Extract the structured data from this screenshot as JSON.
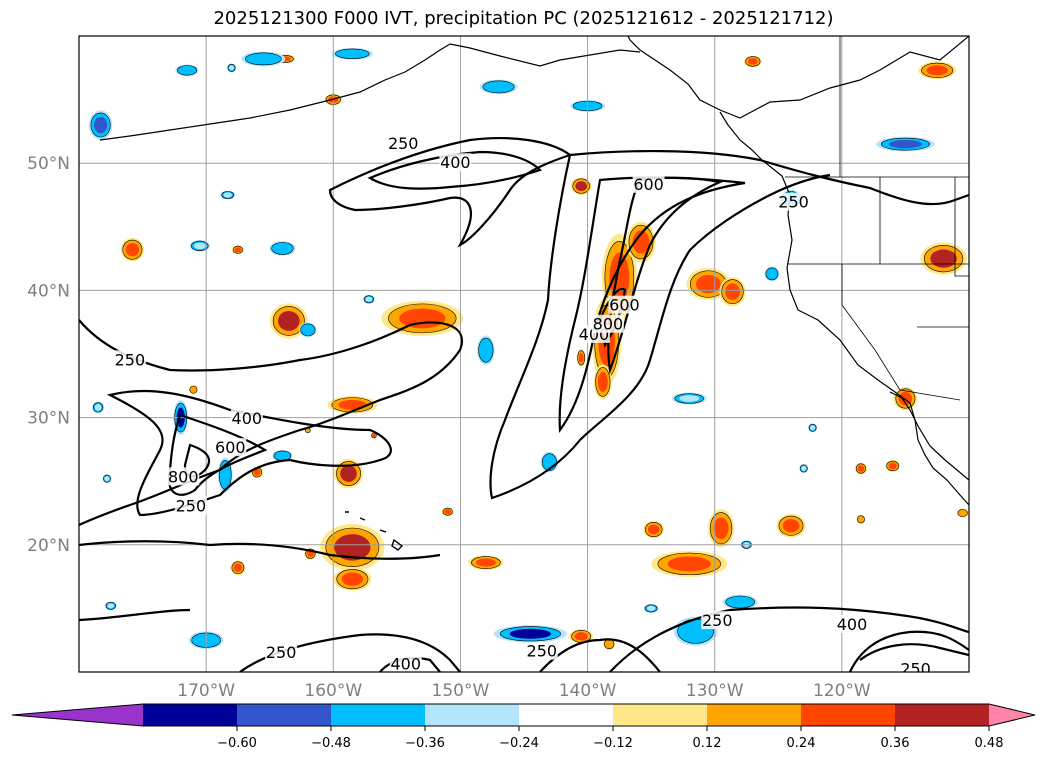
{
  "chart_data": {
    "type": "map",
    "title": "2025121300 F000 IVT, precipitation PC (2025121612 - 2025121712)",
    "lon_range": [
      -180,
      -110
    ],
    "lat_range": [
      10,
      60
    ],
    "lat_ticks": [
      {
        "value": 20,
        "label": "20°N"
      },
      {
        "value": 30,
        "label": "30°N"
      },
      {
        "value": 40,
        "label": "40°N"
      },
      {
        "value": 50,
        "label": "50°N"
      }
    ],
    "lon_ticks": [
      {
        "value": -170,
        "label": "170°W"
      },
      {
        "value": -160,
        "label": "160°W"
      },
      {
        "value": -150,
        "label": "150°W"
      },
      {
        "value": -140,
        "label": "140°W"
      },
      {
        "value": -130,
        "label": "130°W"
      },
      {
        "value": -120,
        "label": "120°W"
      }
    ],
    "grid": true,
    "ivt_contour_levels": [
      250,
      400,
      600,
      800
    ],
    "contour_labels": [
      {
        "text": "250",
        "lon": -171.2,
        "lat": 23.0
      },
      {
        "text": "250",
        "lon": -176.0,
        "lat": 34.5
      },
      {
        "text": "800",
        "lon": -171.8,
        "lat": 25.3
      },
      {
        "text": "600",
        "lon": -168.1,
        "lat": 27.6
      },
      {
        "text": "400",
        "lon": -166.8,
        "lat": 29.9
      },
      {
        "text": "250",
        "lon": -154.5,
        "lat": 51.5
      },
      {
        "text": "400",
        "lon": -150.4,
        "lat": 50.0
      },
      {
        "text": "600",
        "lon": -135.2,
        "lat": 48.3
      },
      {
        "text": "250",
        "lon": -123.8,
        "lat": 46.9
      },
      {
        "text": "400",
        "lon": -139.5,
        "lat": 36.5
      },
      {
        "text": "800",
        "lon": -138.4,
        "lat": 37.3
      },
      {
        "text": "600",
        "lon": -137.1,
        "lat": 38.8
      },
      {
        "text": "250",
        "lon": -164.1,
        "lat": 11.5
      },
      {
        "text": "400",
        "lon": -154.3,
        "lat": 10.6
      },
      {
        "text": "250",
        "lon": -143.6,
        "lat": 11.6
      },
      {
        "text": "250",
        "lon": -129.8,
        "lat": 14.0
      },
      {
        "text": "400",
        "lon": -119.2,
        "lat": 13.7
      },
      {
        "text": "250",
        "lon": -114.2,
        "lat": 10.2
      }
    ],
    "precip_pc_colorbar": {
      "boundaries": [
        -0.72,
        -0.6,
        -0.48,
        -0.36,
        -0.24,
        -0.12,
        0.12,
        0.24,
        0.36,
        0.48,
        0.6,
        0.72
      ],
      "colors": [
        "#9933cc",
        "#000099",
        "#3355cc",
        "#00bfff",
        "#b3e5fc",
        "#ffffff",
        "#ffe88a",
        "#ffa500",
        "#ff4500",
        "#b22222",
        "#ff85a8"
      ],
      "tick_values": [
        -0.6,
        -0.48,
        -0.36,
        -0.24,
        -0.12,
        0.12,
        0.24,
        0.36,
        0.48,
        0.6
      ],
      "tick_labels": [
        "−0.60",
        "−0.48",
        "−0.36",
        "−0.24",
        "−0.12",
        "0.12",
        "0.24",
        "0.36",
        "0.48",
        "0.60"
      ],
      "extend": "both"
    },
    "precip_patches": [
      {
        "lon": -140.5,
        "lat": 48.2,
        "rx": 0.7,
        "ry": 0.6,
        "value": 0.5
      },
      {
        "lon": -137.5,
        "lat": 41.0,
        "rx": 1.2,
        "ry": 3.0,
        "value": 0.45
      },
      {
        "lon": -138.5,
        "lat": 36.0,
        "rx": 1.0,
        "ry": 3.0,
        "value": 0.45
      },
      {
        "lon": -135.8,
        "lat": 43.8,
        "rx": 1.0,
        "ry": 1.4,
        "value": 0.4
      },
      {
        "lon": -138.8,
        "lat": 32.8,
        "rx": 0.6,
        "ry": 1.2,
        "value": 0.36
      },
      {
        "lon": -130.5,
        "lat": 40.5,
        "rx": 1.5,
        "ry": 1.1,
        "value": 0.45
      },
      {
        "lon": -128.6,
        "lat": 39.9,
        "rx": 0.9,
        "ry": 1.0,
        "value": 0.4
      },
      {
        "lon": -112.0,
        "lat": 42.5,
        "rx": 1.6,
        "ry": 1.1,
        "value": 0.5
      },
      {
        "lon": -153.0,
        "lat": 37.8,
        "rx": 2.8,
        "ry": 1.2,
        "value": 0.45
      },
      {
        "lon": -163.5,
        "lat": 37.6,
        "rx": 1.3,
        "ry": 1.2,
        "value": 0.48
      },
      {
        "lon": -158.5,
        "lat": 31.0,
        "rx": 1.7,
        "ry": 0.6,
        "value": 0.4
      },
      {
        "lon": -158.8,
        "lat": 25.6,
        "rx": 1.0,
        "ry": 1.0,
        "value": 0.5
      },
      {
        "lon": -158.5,
        "lat": 19.8,
        "rx": 2.2,
        "ry": 1.6,
        "value": 0.48
      },
      {
        "lon": -158.5,
        "lat": 17.3,
        "rx": 1.3,
        "ry": 0.8,
        "value": 0.36
      },
      {
        "lon": -132.0,
        "lat": 18.5,
        "rx": 2.6,
        "ry": 0.9,
        "value": 0.45
      },
      {
        "lon": -129.5,
        "lat": 21.3,
        "rx": 0.9,
        "ry": 1.3,
        "value": 0.4
      },
      {
        "lon": -124.0,
        "lat": 21.5,
        "rx": 1.0,
        "ry": 0.8,
        "value": 0.45
      },
      {
        "lon": -134.8,
        "lat": 21.2,
        "rx": 0.7,
        "ry": 0.6,
        "value": 0.36
      },
      {
        "lon": -140.5,
        "lat": 34.7,
        "rx": 0.3,
        "ry": 0.6,
        "value": 0.36
      },
      {
        "lon": -161.8,
        "lat": 19.3,
        "rx": 0.4,
        "ry": 0.4,
        "value": 0.36
      },
      {
        "lon": -167.5,
        "lat": 18.2,
        "rx": 0.5,
        "ry": 0.5,
        "value": 0.36
      },
      {
        "lon": -148.0,
        "lat": 18.6,
        "rx": 1.2,
        "ry": 0.5,
        "value": 0.36
      },
      {
        "lon": -116.0,
        "lat": 26.2,
        "rx": 0.5,
        "ry": 0.4,
        "value": 0.4
      },
      {
        "lon": -112.5,
        "lat": 57.3,
        "rx": 1.3,
        "ry": 0.6,
        "value": 0.4
      },
      {
        "lon": -175.8,
        "lat": 43.2,
        "rx": 0.8,
        "ry": 0.8,
        "value": 0.36
      },
      {
        "lon": -163.8,
        "lat": 58.2,
        "rx": 0.7,
        "ry": 0.3,
        "value": 0.36
      },
      {
        "lon": -115.0,
        "lat": 31.5,
        "rx": 0.8,
        "ry": 0.8,
        "value": 0.45
      },
      {
        "lon": -118.5,
        "lat": 26.0,
        "rx": 0.4,
        "ry": 0.4,
        "value": 0.36
      },
      {
        "lon": -127.0,
        "lat": 58.0,
        "rx": 0.6,
        "ry": 0.4,
        "value": 0.36
      },
      {
        "lon": -156.8,
        "lat": 28.6,
        "rx": 0.2,
        "ry": 0.2,
        "value": 0.36
      },
      {
        "lon": -160.0,
        "lat": 55.0,
        "rx": 0.6,
        "ry": 0.4,
        "value": 0.36
      },
      {
        "lon": -162.0,
        "lat": 29.0,
        "rx": 0.2,
        "ry": 0.2,
        "value": 0.24
      },
      {
        "lon": -151.0,
        "lat": 22.6,
        "rx": 0.4,
        "ry": 0.3,
        "value": 0.36
      },
      {
        "lon": -166.0,
        "lat": 25.7,
        "rx": 0.4,
        "ry": 0.4,
        "value": 0.36
      },
      {
        "lon": -167.5,
        "lat": 43.2,
        "rx": 0.4,
        "ry": 0.3,
        "value": 0.36
      },
      {
        "lon": -171.0,
        "lat": 32.2,
        "rx": 0.3,
        "ry": 0.3,
        "value": 0.24
      },
      {
        "lon": -140.5,
        "lat": 12.8,
        "rx": 0.8,
        "ry": 0.5,
        "value": 0.36
      },
      {
        "lon": -138.3,
        "lat": 12.2,
        "rx": 0.4,
        "ry": 0.4,
        "value": 0.24
      },
      {
        "lon": -118.5,
        "lat": 22.0,
        "rx": 0.3,
        "ry": 0.3,
        "value": 0.24
      },
      {
        "lon": -110.5,
        "lat": 22.5,
        "rx": 0.4,
        "ry": 0.3,
        "value": 0.24
      }
    ],
    "neg_patches": [
      {
        "lon": -178.3,
        "lat": 53.0,
        "rx": 0.8,
        "ry": 1.0,
        "value": -0.45
      },
      {
        "lon": -172.0,
        "lat": 30.0,
        "rx": 0.5,
        "ry": 1.2,
        "value": -0.5
      },
      {
        "lon": -165.5,
        "lat": 58.2,
        "rx": 1.5,
        "ry": 0.5,
        "value": -0.3
      },
      {
        "lon": -168.5,
        "lat": 25.5,
        "rx": 0.5,
        "ry": 1.2,
        "value": -0.3
      },
      {
        "lon": -158.5,
        "lat": 58.6,
        "rx": 1.4,
        "ry": 0.4,
        "value": -0.3
      },
      {
        "lon": -147.0,
        "lat": 56.0,
        "rx": 1.3,
        "ry": 0.5,
        "value": -0.3
      },
      {
        "lon": -140.0,
        "lat": 54.5,
        "rx": 1.2,
        "ry": 0.4,
        "value": -0.3
      },
      {
        "lon": -143.0,
        "lat": 26.5,
        "rx": 0.6,
        "ry": 0.7,
        "value": -0.3
      },
      {
        "lon": -170.0,
        "lat": 12.5,
        "rx": 1.2,
        "ry": 0.6,
        "value": -0.3
      },
      {
        "lon": -144.5,
        "lat": 13.0,
        "rx": 2.5,
        "ry": 0.6,
        "value": -0.5
      },
      {
        "lon": -131.5,
        "lat": 13.2,
        "rx": 1.5,
        "ry": 1.0,
        "value": -0.36
      },
      {
        "lon": -128.0,
        "lat": 15.5,
        "rx": 1.2,
        "ry": 0.5,
        "value": -0.3
      },
      {
        "lon": -115.0,
        "lat": 51.5,
        "rx": 2.0,
        "ry": 0.5,
        "value": -0.45
      },
      {
        "lon": -124.0,
        "lat": 47.2,
        "rx": 0.8,
        "ry": 0.6,
        "value": -0.36
      },
      {
        "lon": -125.5,
        "lat": 41.3,
        "rx": 0.5,
        "ry": 0.5,
        "value": -0.3
      },
      {
        "lon": -148.0,
        "lat": 35.3,
        "rx": 0.6,
        "ry": 1.0,
        "value": -0.3
      },
      {
        "lon": -132.0,
        "lat": 31.5,
        "rx": 1.2,
        "ry": 0.4,
        "value": -0.24
      },
      {
        "lon": -178.5,
        "lat": 30.8,
        "rx": 0.4,
        "ry": 0.4,
        "value": -0.24
      },
      {
        "lon": -162.0,
        "lat": 36.9,
        "rx": 0.6,
        "ry": 0.5,
        "value": -0.3
      },
      {
        "lon": -164.0,
        "lat": 27.0,
        "rx": 0.7,
        "ry": 0.4,
        "value": -0.3
      },
      {
        "lon": -164.0,
        "lat": 43.3,
        "rx": 0.9,
        "ry": 0.5,
        "value": -0.3
      },
      {
        "lon": -170.5,
        "lat": 43.5,
        "rx": 0.7,
        "ry": 0.4,
        "value": -0.24
      },
      {
        "lon": -177.5,
        "lat": 15.2,
        "rx": 0.4,
        "ry": 0.3,
        "value": -0.24
      },
      {
        "lon": -171.5,
        "lat": 57.3,
        "rx": 0.8,
        "ry": 0.4,
        "value": -0.3
      },
      {
        "lon": -177.8,
        "lat": 25.2,
        "rx": 0.3,
        "ry": 0.3,
        "value": -0.24
      },
      {
        "lon": -168.3,
        "lat": 47.5,
        "rx": 0.5,
        "ry": 0.3,
        "value": -0.24
      },
      {
        "lon": -135.0,
        "lat": 15.0,
        "rx": 0.5,
        "ry": 0.3,
        "value": -0.24
      },
      {
        "lon": -127.5,
        "lat": 20.0,
        "rx": 0.4,
        "ry": 0.3,
        "value": -0.24
      },
      {
        "lon": -168.0,
        "lat": 57.5,
        "rx": 0.3,
        "ry": 0.3,
        "value": -0.24
      },
      {
        "lon": -122.3,
        "lat": 29.2,
        "rx": 0.3,
        "ry": 0.3,
        "value": -0.24
      },
      {
        "lon": -123.0,
        "lat": 26.0,
        "rx": 0.3,
        "ry": 0.3,
        "value": -0.24
      },
      {
        "lon": -157.2,
        "lat": 39.3,
        "rx": 0.4,
        "ry": 0.3,
        "value": -0.24
      }
    ]
  }
}
